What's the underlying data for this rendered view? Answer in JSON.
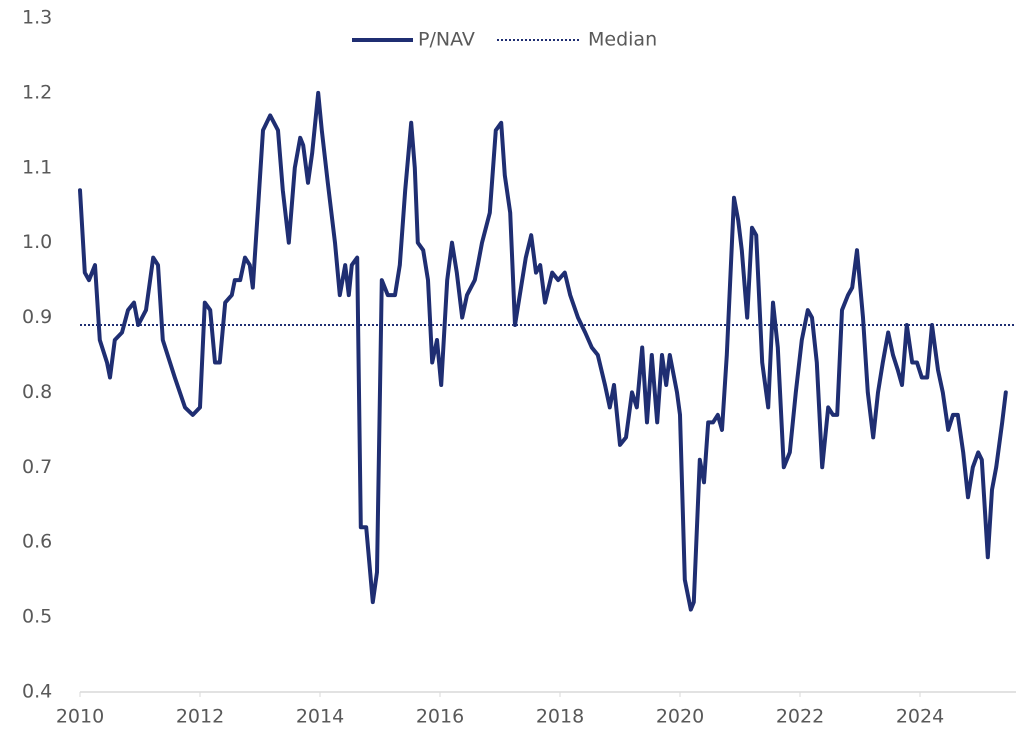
{
  "chart_data": {
    "type": "line",
    "x": [
      2010,
      2010.08,
      2010.15,
      2010.25,
      2010.33,
      2010.45,
      2010.5,
      2010.58,
      2010.7,
      2010.8,
      2010.9,
      2010.97,
      2011.1,
      2011.22,
      2011.3,
      2011.38,
      2011.5,
      2011.58,
      2011.75,
      2011.88,
      2012,
      2012.08,
      2012.17,
      2012.25,
      2012.33,
      2012.42,
      2012.53,
      2012.58,
      2012.67,
      2012.75,
      2012.83,
      2012.88,
      2012.97,
      2013.05,
      2013.17,
      2013.3,
      2013.38,
      2013.48,
      2013.58,
      2013.67,
      2013.72,
      2013.8,
      2013.87,
      2013.97,
      2014.03,
      2014.13,
      2014.25,
      2014.33,
      2014.42,
      2014.48,
      2014.53,
      2014.62,
      2014.68,
      2014.77,
      2014.88,
      2014.95,
      2015.03,
      2015.13,
      2015.25,
      2015.33,
      2015.42,
      2015.52,
      2015.58,
      2015.63,
      2015.72,
      2015.8,
      2015.87,
      2015.95,
      2016.02,
      2016.12,
      2016.2,
      2016.28,
      2016.37,
      2016.45,
      2016.58,
      2016.63,
      2016.7,
      2016.83,
      2016.93,
      2017.02,
      2017.08,
      2017.17,
      2017.25,
      2017.33,
      2017.43,
      2017.52,
      2017.6,
      2017.67,
      2017.75,
      2017.87,
      2017.97,
      2018.08,
      2018.17,
      2018.3,
      2018.42,
      2018.53,
      2018.63,
      2018.75,
      2018.83,
      2018.9,
      2019,
      2019.1,
      2019.2,
      2019.28,
      2019.37,
      2019.45,
      2019.53,
      2019.62,
      2019.7,
      2019.77,
      2019.83,
      2019.95,
      2020,
      2020.08,
      2020.18,
      2020.23,
      2020.33,
      2020.4,
      2020.47,
      2020.55,
      2020.63,
      2020.7,
      2020.78,
      2020.9,
      2020.97,
      2021.03,
      2021.12,
      2021.2,
      2021.27,
      2021.37,
      2021.47,
      2021.55,
      2021.63,
      2021.73,
      2021.83,
      2021.93,
      2022.03,
      2022.13,
      2022.2,
      2022.28,
      2022.37,
      2022.47,
      2022.55,
      2022.62,
      2022.7,
      2022.8,
      2022.87,
      2022.95,
      2023.05,
      2023.13,
      2023.22,
      2023.3,
      2023.38,
      2023.47,
      2023.55,
      2023.63,
      2023.7,
      2023.78,
      2023.87,
      2023.95,
      2024.03,
      2024.12,
      2024.2,
      2024.3,
      2024.38,
      2024.47,
      2024.55,
      2024.63,
      2024.72,
      2024.8,
      2024.88,
      2024.97,
      2025.03,
      2025.13,
      2025.2,
      2025.27,
      2025.37,
      2025.43
    ],
    "series": [
      {
        "name": "P/NAV",
        "color": "#1f2e72",
        "values": [
          1.07,
          0.96,
          0.95,
          0.97,
          0.87,
          0.84,
          0.82,
          0.87,
          0.88,
          0.91,
          0.92,
          0.89,
          0.91,
          0.98,
          0.97,
          0.87,
          0.84,
          0.82,
          0.78,
          0.77,
          0.78,
          0.92,
          0.91,
          0.84,
          0.84,
          0.92,
          0.93,
          0.95,
          0.95,
          0.98,
          0.97,
          0.94,
          1.05,
          1.15,
          1.17,
          1.15,
          1.07,
          1.0,
          1.1,
          1.14,
          1.13,
          1.08,
          1.12,
          1.2,
          1.15,
          1.08,
          1.0,
          0.93,
          0.97,
          0.93,
          0.97,
          0.98,
          0.62,
          0.62,
          0.52,
          0.56,
          0.95,
          0.93,
          0.93,
          0.97,
          1.07,
          1.16,
          1.1,
          1.0,
          0.99,
          0.95,
          0.84,
          0.87,
          0.81,
          0.95,
          1.0,
          0.96,
          0.9,
          0.93,
          0.95,
          0.97,
          1.0,
          1.04,
          1.15,
          1.16,
          1.09,
          1.04,
          0.89,
          0.93,
          0.98,
          1.01,
          0.96,
          0.97,
          0.92,
          0.96,
          0.95,
          0.96,
          0.93,
          0.9,
          0.88,
          0.86,
          0.85,
          0.81,
          0.78,
          0.81,
          0.73,
          0.74,
          0.8,
          0.78,
          0.86,
          0.76,
          0.85,
          0.76,
          0.85,
          0.81,
          0.85,
          0.8,
          0.77,
          0.55,
          0.51,
          0.52,
          0.71,
          0.68,
          0.76,
          0.76,
          0.77,
          0.75,
          0.85,
          1.06,
          1.03,
          0.99,
          0.9,
          1.02,
          1.01,
          0.84,
          0.78,
          0.92,
          0.86,
          0.7,
          0.72,
          0.8,
          0.87,
          0.91,
          0.9,
          0.84,
          0.7,
          0.78,
          0.77,
          0.77,
          0.91,
          0.93,
          0.94,
          0.99,
          0.9,
          0.8,
          0.74,
          0.8,
          0.84,
          0.88,
          0.85,
          0.83,
          0.81,
          0.89,
          0.84,
          0.84,
          0.82,
          0.82,
          0.89,
          0.83,
          0.8,
          0.75,
          0.77,
          0.77,
          0.72,
          0.66,
          0.7,
          0.72,
          0.71,
          0.58,
          0.67,
          0.7,
          0.76,
          0.8
        ]
      }
    ],
    "median": {
      "name": "Median",
      "value": 0.89,
      "color": "#1f2e72"
    },
    "xlim": [
      2010,
      2025.6
    ],
    "xticks": [
      2010,
      2012,
      2014,
      2016,
      2018,
      2020,
      2022,
      2024
    ],
    "ylim": [
      0.4,
      1.3
    ],
    "yticks": [
      0.4,
      0.5,
      0.6,
      0.7,
      0.8,
      0.9,
      {
        "value": 1,
        "label": "1.0"
      },
      1.1,
      1.2,
      1.3
    ]
  }
}
